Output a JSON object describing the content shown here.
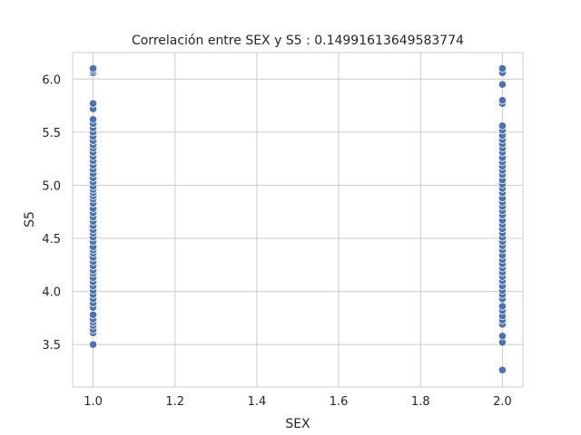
{
  "chart_data": {
    "type": "scatter",
    "title": "Correlación entre SEX y S5 : 0.14991613649583774",
    "xlabel": "SEX",
    "ylabel": "S5",
    "xlim": [
      0.95,
      2.05
    ],
    "ylim": [
      3.1,
      6.25
    ],
    "xticks": [
      1.0,
      1.2,
      1.4,
      1.6,
      1.8,
      2.0
    ],
    "xtick_labels": [
      "1.0",
      "1.2",
      "1.4",
      "1.6",
      "1.8",
      "2.0"
    ],
    "yticks": [
      3.5,
      4.0,
      4.5,
      5.0,
      5.5,
      6.0
    ],
    "ytick_labels": [
      "3.5",
      "4.0",
      "4.5",
      "5.0",
      "5.5",
      "6.0"
    ],
    "grid": true,
    "marker_color": "#4c72b0",
    "series": [
      {
        "x": 1,
        "values": [
          3.5,
          3.61,
          3.64,
          3.68,
          3.71,
          3.74,
          3.78,
          3.85,
          3.89,
          3.93,
          3.97,
          4.01,
          4.05,
          4.09,
          4.13,
          4.17,
          4.2,
          4.24,
          4.28,
          4.32,
          4.36,
          4.39,
          4.42,
          4.47,
          4.51,
          4.55,
          4.58,
          4.62,
          4.66,
          4.7,
          4.74,
          4.78,
          4.83,
          4.87,
          4.9,
          4.93,
          4.96,
          4.99,
          5.03,
          5.07,
          5.11,
          5.15,
          5.19,
          5.23,
          5.27,
          5.31,
          5.35,
          5.38,
          5.42,
          5.46,
          5.5,
          5.54,
          5.58,
          5.62,
          5.72,
          5.77,
          6.06,
          6.08,
          6.1
        ]
      },
      {
        "x": 2,
        "values": [
          3.26,
          3.52,
          3.58,
          3.69,
          3.73,
          3.77,
          3.82,
          3.86,
          3.93,
          3.97,
          4.01,
          4.05,
          4.1,
          4.14,
          4.18,
          4.22,
          4.26,
          4.3,
          4.34,
          4.39,
          4.43,
          4.47,
          4.51,
          4.55,
          4.59,
          4.63,
          4.67,
          4.72,
          4.76,
          4.8,
          4.84,
          4.88,
          4.93,
          4.97,
          5.01,
          5.05,
          5.1,
          5.14,
          5.18,
          5.22,
          5.26,
          5.31,
          5.35,
          5.39,
          5.43,
          5.47,
          5.52,
          5.56,
          5.77,
          5.8,
          5.95,
          6.06,
          6.1
        ]
      }
    ]
  }
}
